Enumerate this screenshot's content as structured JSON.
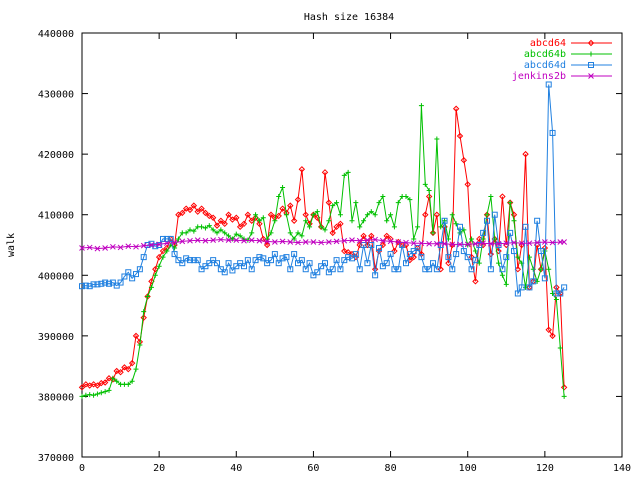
{
  "chart_data": {
    "type": "line",
    "title": "Hash size 16384",
    "xlabel": "",
    "ylabel": "walk",
    "xlim": [
      0,
      140
    ],
    "ylim": [
      370000,
      440000
    ],
    "xticks": [
      0,
      20,
      40,
      60,
      80,
      100,
      120,
      140
    ],
    "yticks": [
      370000,
      380000,
      390000,
      400000,
      410000,
      420000,
      430000,
      440000
    ],
    "xtick_labels": [
      "0",
      "20",
      "40",
      "60",
      "80",
      "100",
      "120",
      "140"
    ],
    "ytick_labels": [
      "370000",
      "380000",
      "390000",
      "400000",
      "410000",
      "420000",
      "430000",
      "440000"
    ],
    "grid": false,
    "legend_position": "top-right",
    "series": [
      {
        "name": "abcd64",
        "color": "#ff0000",
        "marker": "diamond",
        "x": [
          0,
          1,
          2,
          3,
          4,
          5,
          6,
          7,
          8,
          9,
          10,
          11,
          12,
          13,
          14,
          15,
          16,
          17,
          18,
          19,
          20,
          21,
          22,
          23,
          24,
          25,
          26,
          27,
          28,
          29,
          30,
          31,
          32,
          33,
          34,
          35,
          36,
          37,
          38,
          39,
          40,
          41,
          42,
          43,
          44,
          45,
          46,
          47,
          48,
          49,
          50,
          51,
          52,
          53,
          54,
          55,
          56,
          57,
          58,
          59,
          60,
          61,
          62,
          63,
          64,
          65,
          66,
          67,
          68,
          69,
          70,
          71,
          72,
          73,
          74,
          75,
          76,
          77,
          78,
          79,
          80,
          81,
          82,
          83,
          84,
          85,
          86,
          87,
          88,
          89,
          90,
          91,
          92,
          93,
          94,
          95,
          96,
          97,
          98,
          99,
          100,
          101,
          102,
          103,
          104,
          105,
          106,
          107,
          108,
          109,
          110,
          111,
          112,
          113,
          114,
          115,
          116,
          117,
          118,
          119,
          120,
          121,
          122,
          123,
          124,
          125
        ],
        "y": [
          381500,
          382000,
          381800,
          382000,
          381800,
          382200,
          382300,
          383000,
          382800,
          384200,
          384000,
          384800,
          384500,
          385500,
          390000,
          389000,
          393000,
          396500,
          399000,
          401000,
          403000,
          404000,
          404500,
          406000,
          405000,
          410000,
          410300,
          411000,
          410800,
          411500,
          410500,
          411000,
          410300,
          409800,
          409500,
          408200,
          409000,
          408500,
          410000,
          409200,
          409500,
          408000,
          408500,
          410000,
          409000,
          409500,
          408500,
          406000,
          405000,
          410000,
          409500,
          409800,
          411000,
          410300,
          411500,
          409000,
          412500,
          417500,
          410000,
          408500,
          410000,
          409500,
          408000,
          417000,
          412000,
          407000,
          408000,
          408500,
          404000,
          403800,
          403500,
          403000,
          405000,
          406500,
          405000,
          406500,
          401000,
          404000,
          405000,
          406500,
          406000,
          404000,
          405500,
          405000,
          405000,
          402500,
          403000,
          404500,
          403500,
          410000,
          413000,
          407000,
          410000,
          401000,
          408000,
          402000,
          405000,
          427500,
          423000,
          419000,
          415000,
          403000,
          399000,
          406000,
          405000,
          410000,
          403500,
          406000,
          404000,
          413000,
          405000,
          412000,
          410000,
          401000,
          405000,
          420000,
          398000,
          399000,
          405000,
          401000,
          404500,
          391000,
          390000,
          398000,
          397000,
          381500
        ]
      },
      {
        "name": "abcd64b",
        "color": "#00c000",
        "marker": "plus",
        "x": [
          0,
          1,
          2,
          3,
          4,
          5,
          6,
          7,
          8,
          9,
          10,
          11,
          12,
          13,
          14,
          15,
          16,
          17,
          18,
          19,
          20,
          21,
          22,
          23,
          24,
          25,
          26,
          27,
          28,
          29,
          30,
          31,
          32,
          33,
          34,
          35,
          36,
          37,
          38,
          39,
          40,
          41,
          42,
          43,
          44,
          45,
          46,
          47,
          48,
          49,
          50,
          51,
          52,
          53,
          54,
          55,
          56,
          57,
          58,
          59,
          60,
          61,
          62,
          63,
          64,
          65,
          66,
          67,
          68,
          69,
          70,
          71,
          72,
          73,
          74,
          75,
          76,
          77,
          78,
          79,
          80,
          81,
          82,
          83,
          84,
          85,
          86,
          87,
          88,
          89,
          90,
          91,
          92,
          93,
          94,
          95,
          96,
          97,
          98,
          99,
          100,
          101,
          102,
          103,
          104,
          105,
          106,
          107,
          108,
          109,
          110,
          111,
          112,
          113,
          114,
          115,
          116,
          117,
          118,
          119,
          120,
          121,
          122,
          123,
          124,
          125
        ],
        "y": [
          380000,
          380200,
          380300,
          380200,
          380400,
          380600,
          380800,
          381000,
          383000,
          382500,
          382000,
          382000,
          382000,
          382500,
          384500,
          388500,
          394000,
          396500,
          398000,
          400000,
          401500,
          403000,
          404000,
          405000,
          404500,
          406000,
          407000,
          407000,
          407500,
          407300,
          408000,
          408000,
          407800,
          408200,
          407500,
          407000,
          407500,
          407000,
          406500,
          406000,
          406800,
          406500,
          406000,
          405800,
          407000,
          410000,
          409000,
          409500,
          406000,
          407000,
          409000,
          413000,
          414500,
          410000,
          407000,
          406000,
          407000,
          406500,
          409000,
          408000,
          410000,
          410500,
          408000,
          407500,
          409000,
          411500,
          412000,
          410000,
          416500,
          417000,
          409000,
          412000,
          408000,
          409000,
          410000,
          410500,
          410000,
          412000,
          413000,
          409000,
          410000,
          408000,
          412000,
          413000,
          413000,
          412500,
          406000,
          408000,
          428000,
          415000,
          414000,
          407000,
          422500,
          408000,
          409000,
          406000,
          410000,
          408500,
          407000,
          407500,
          405000,
          406000,
          404000,
          402000,
          406000,
          410000,
          413000,
          406000,
          402000,
          400000,
          398500,
          412000,
          409000,
          403000,
          402000,
          398000,
          403000,
          401000,
          399000,
          401000,
          404000,
          401000,
          397000,
          396000,
          388000,
          380000
        ]
      },
      {
        "name": "abcd64d",
        "color": "#2080e0",
        "marker": "square",
        "x": [
          0,
          1,
          2,
          3,
          4,
          5,
          6,
          7,
          8,
          9,
          10,
          11,
          12,
          13,
          14,
          15,
          16,
          17,
          18,
          19,
          20,
          21,
          22,
          23,
          24,
          25,
          26,
          27,
          28,
          29,
          30,
          31,
          32,
          33,
          34,
          35,
          36,
          37,
          38,
          39,
          40,
          41,
          42,
          43,
          44,
          45,
          46,
          47,
          48,
          49,
          50,
          51,
          52,
          53,
          54,
          55,
          56,
          57,
          58,
          59,
          60,
          61,
          62,
          63,
          64,
          65,
          66,
          67,
          68,
          69,
          70,
          71,
          72,
          73,
          74,
          75,
          76,
          77,
          78,
          79,
          80,
          81,
          82,
          83,
          84,
          85,
          86,
          87,
          88,
          89,
          90,
          91,
          92,
          93,
          94,
          95,
          96,
          97,
          98,
          99,
          100,
          101,
          102,
          103,
          104,
          105,
          106,
          107,
          108,
          109,
          110,
          111,
          112,
          113,
          114,
          115,
          116,
          117,
          118,
          119,
          120,
          121,
          122,
          123,
          124,
          125
        ],
        "y": [
          398200,
          398300,
          398200,
          398500,
          398500,
          398600,
          398800,
          398600,
          398800,
          398300,
          398800,
          399800,
          400500,
          399500,
          400200,
          401000,
          403000,
          405000,
          405200,
          404800,
          405000,
          406000,
          406000,
          406000,
          403500,
          402500,
          402000,
          402800,
          402500,
          402500,
          402500,
          401000,
          401500,
          402000,
          402500,
          402000,
          401000,
          400500,
          402000,
          400800,
          401500,
          402000,
          401500,
          402500,
          401000,
          402500,
          403000,
          402800,
          402000,
          402500,
          403500,
          402000,
          402800,
          403000,
          401000,
          403500,
          402000,
          402500,
          401000,
          402000,
          400000,
          400500,
          401500,
          402000,
          400500,
          401000,
          402500,
          401000,
          402500,
          403000,
          402800,
          403500,
          401000,
          405000,
          402000,
          405000,
          400000,
          404500,
          401500,
          402000,
          403500,
          401000,
          401000,
          405000,
          402000,
          403500,
          404000,
          404500,
          403000,
          401000,
          401000,
          402000,
          401000,
          405000,
          409000,
          403000,
          401000,
          403500,
          408000,
          404000,
          403000,
          401000,
          402500,
          405000,
          407000,
          409000,
          401000,
          410000,
          405000,
          401000,
          403000,
          407000,
          404000,
          397000,
          398000,
          408000,
          398000,
          399000,
          409000,
          404000,
          399500,
          431500,
          423500,
          397000,
          397000,
          398000
        ],
        "note_removed": null
      },
      {
        "name": "jenkins2b",
        "color": "#c000c0",
        "marker": "x",
        "x": [
          0,
          2,
          4,
          6,
          8,
          10,
          12,
          14,
          16,
          18,
          20,
          22,
          24,
          26,
          28,
          30,
          32,
          34,
          36,
          38,
          40,
          42,
          44,
          46,
          48,
          50,
          52,
          54,
          56,
          58,
          60,
          62,
          64,
          66,
          68,
          70,
          72,
          74,
          76,
          78,
          80,
          82,
          84,
          86,
          88,
          90,
          92,
          94,
          96,
          98,
          100,
          102,
          104,
          106,
          108,
          110,
          112,
          114,
          116,
          118,
          120,
          122,
          124,
          125
        ],
        "y": [
          404500,
          404600,
          404400,
          404500,
          404700,
          404600,
          404800,
          404700,
          404900,
          405000,
          405100,
          405300,
          405400,
          405600,
          405700,
          405800,
          405700,
          405800,
          405900,
          405800,
          405800,
          405700,
          405800,
          405700,
          405600,
          405500,
          405600,
          405500,
          405400,
          405500,
          405500,
          405400,
          405500,
          405600,
          405700,
          405800,
          405700,
          405800,
          405900,
          405700,
          405600,
          405500,
          405400,
          405300,
          405300,
          405200,
          405200,
          405200,
          405100,
          405100,
          405100,
          405200,
          405300,
          405200,
          405200,
          405300,
          405400,
          405300,
          405300,
          405400,
          405500,
          405400,
          405500,
          405500
        ]
      }
    ]
  }
}
